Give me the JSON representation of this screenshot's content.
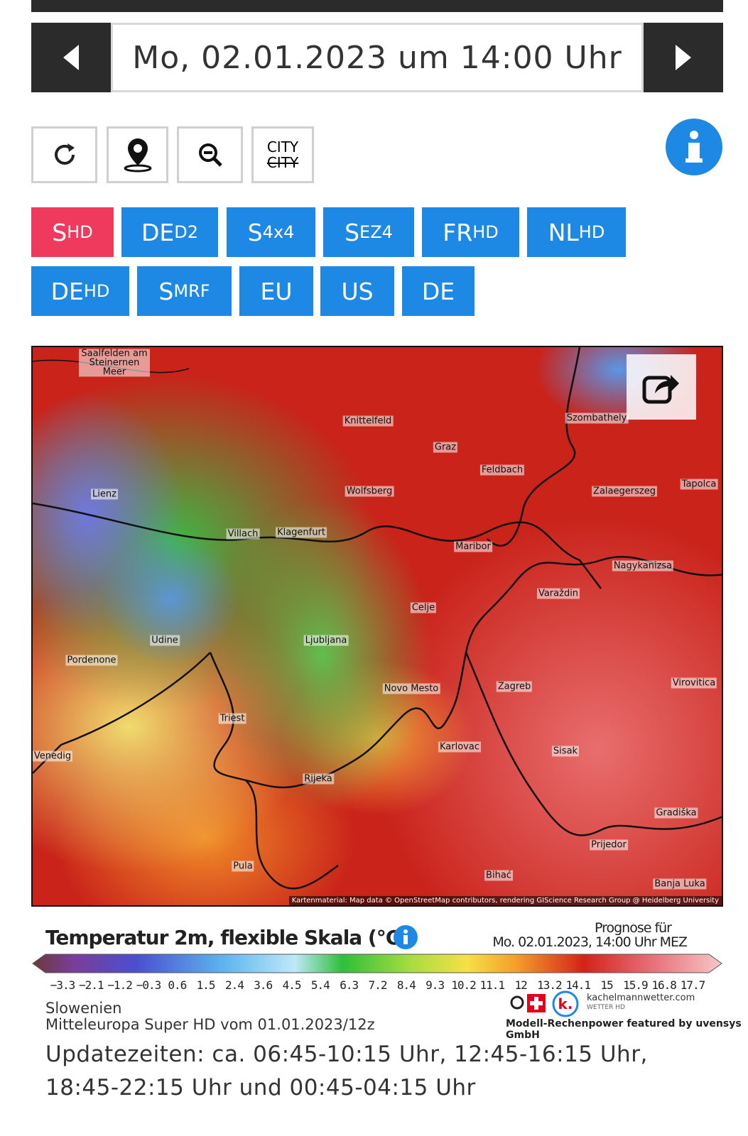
{
  "header": {
    "date": "Mo, 02.01.2023 um 14:00 Uhr"
  },
  "toolbar": {
    "city_top": "CITY",
    "city_bottom": "CITY"
  },
  "models": [
    {
      "main": "S",
      "sub": "HD"
    },
    {
      "main": "DE",
      "sub": "D2"
    },
    {
      "main": "S",
      "sub": "4x4"
    },
    {
      "main": "S",
      "sub": "EZ4"
    },
    {
      "main": "FR",
      "sub": "HD"
    },
    {
      "main": "NL",
      "sub": "HD"
    },
    {
      "main": "DE",
      "sub": "HD"
    },
    {
      "main": "S",
      "sub": "MRF"
    },
    {
      "main": "EU"
    },
    {
      "main": "US"
    },
    {
      "main": "DE"
    }
  ],
  "map": {
    "cities": [
      "Saalfelden am Steinernen Meer",
      "Knittelfeld",
      "Szombathely",
      "Graz",
      "Feldbach",
      "Lienz",
      "Wolfsberg",
      "Zalaegerszeg",
      "Tapolca",
      "Villach",
      "Klagenfurt",
      "Maribor",
      "Nagykanizsa",
      "Varaždin",
      "Celje",
      "Udine",
      "Ljubljana",
      "Pordenone",
      "Novo Mesto",
      "Zagreb",
      "Virovitica",
      "Triest",
      "Venedig",
      "Karlovac",
      "Sisak",
      "Rijeka",
      "Gradiška",
      "Prijedor",
      "Pula",
      "Bihać",
      "Banja Luka"
    ],
    "attribution": "Kartenmaterial: Map data © OpenStreetMap contributors, rendering GIScience Research Group @ Heidelberg University"
  },
  "legend": {
    "title": "Temperatur 2m, flexible Skala (°C)",
    "forecast_label": "Prognose für",
    "forecast_time": "Mo. 02.01.2023, 14:00 Uhr MEZ",
    "ticks": [
      "−3.3",
      "−2.1",
      "−1.2",
      "−0.3",
      "0.6",
      "1.5",
      "2.4",
      "3.6",
      "4.5",
      "5.4",
      "6.3",
      "7.2",
      "8.4",
      "9.3",
      "10.2",
      "11.1",
      "12",
      "13.2",
      "14.1",
      "15",
      "15.9",
      "16.8",
      "17.7"
    ]
  },
  "footer": {
    "region": "Slowenien",
    "model_run": "Mitteleuropa Super HD vom 01.01.2023/12z",
    "logo": "kachelmannwetter.com",
    "logo_sub": "WETTER HD",
    "credit": "Modell-Rechenpower featured by uvensys GmbH",
    "updates": "Updatezeiten: ca. 06:45-10:15 Uhr, 12:45-16:15 Uhr, 18:45-22:15 Uhr und 00:45-04:15 Uhr"
  }
}
